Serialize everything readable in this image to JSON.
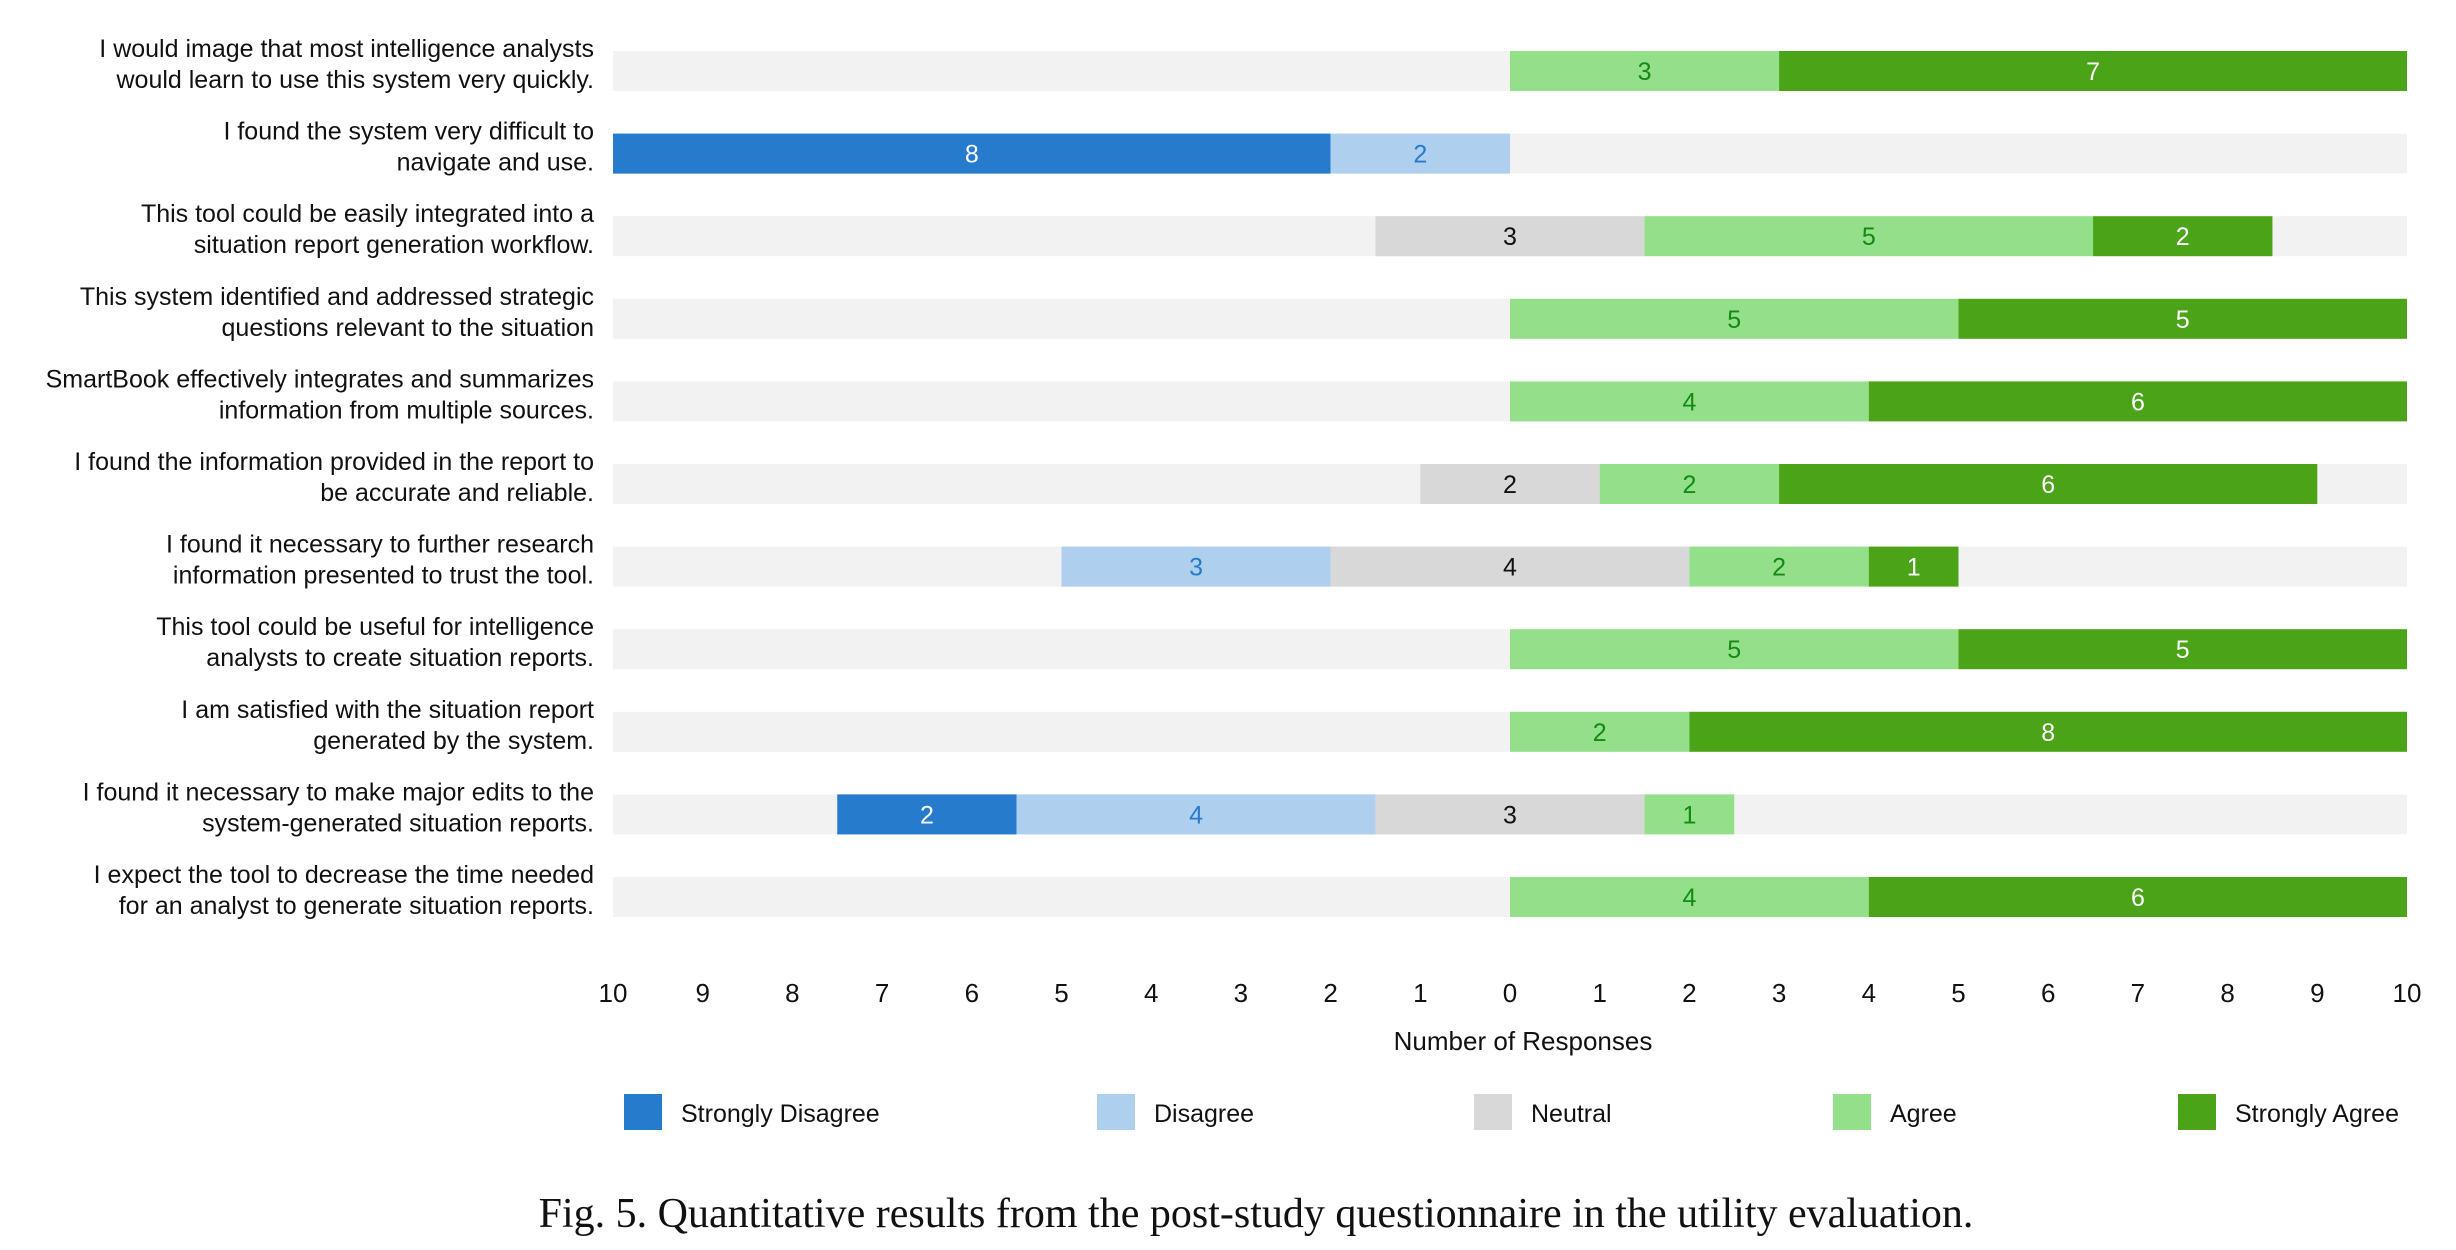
{
  "chart_data": {
    "type": "bar",
    "subtype": "diverging-stacked-horizontal",
    "title": "",
    "xlabel": "Number of Responses",
    "ylabel": "",
    "xlim": [
      -10,
      10
    ],
    "x_ticks": [
      -10,
      -9,
      -8,
      -7,
      -6,
      -5,
      -4,
      -3,
      -2,
      -1,
      0,
      1,
      2,
      3,
      4,
      5,
      6,
      7,
      8,
      9,
      10
    ],
    "x_tick_labels": [
      "10",
      "9",
      "8",
      "7",
      "6",
      "5",
      "4",
      "3",
      "2",
      "1",
      "0",
      "1",
      "2",
      "3",
      "4",
      "5",
      "6",
      "7",
      "8",
      "9",
      "10"
    ],
    "grid": false,
    "neutral_centered": true,
    "legend_position": "bottom",
    "legend": [
      "Strongly Disagree",
      "Disagree",
      "Neutral",
      "Agree",
      "Strongly Agree"
    ],
    "colors": {
      "Strongly Disagree": "#277bcc",
      "Disagree": "#aecfee",
      "Neutral": "#d8d8d8",
      "Agree": "#94e08a",
      "Strongly Agree": "#4ba317",
      "track": "#f2f2f2"
    },
    "label_colors": {
      "Strongly Disagree": "#ffffff",
      "Disagree": "#277bcc",
      "Neutral": "#111111",
      "Agree": "#138a13",
      "Strongly Agree": "#ffffff"
    },
    "categories": [
      [
        "I would image that most intelligence analysts",
        "would learn to use this system very quickly."
      ],
      [
        "I found the system very difficult to",
        "navigate and use."
      ],
      [
        "This tool could be easily integrated into a",
        "situation report generation workflow."
      ],
      [
        "This system identified and addressed strategic",
        "questions relevant to the situation"
      ],
      [
        "SmartBook effectively integrates and summarizes",
        "information from multiple sources."
      ],
      [
        "I found the information provided in the report to",
        "be accurate and reliable."
      ],
      [
        "I found it necessary to further research",
        "information presented to trust the tool."
      ],
      [
        "This tool could be useful for intelligence",
        "analysts to create situation reports."
      ],
      [
        "I am satisfied with the situation report",
        "generated by the system."
      ],
      [
        "I found it necessary to make major edits to the",
        "system-generated situation reports."
      ],
      [
        "I expect the tool to decrease the time needed",
        "for an analyst to generate situation reports."
      ]
    ],
    "series": [
      {
        "name": "Strongly Disagree",
        "values": [
          0,
          8,
          0,
          0,
          0,
          0,
          0,
          0,
          0,
          2,
          0
        ]
      },
      {
        "name": "Disagree",
        "values": [
          0,
          2,
          0,
          0,
          0,
          0,
          3,
          0,
          0,
          4,
          0
        ]
      },
      {
        "name": "Neutral",
        "values": [
          0,
          0,
          3,
          0,
          0,
          2,
          4,
          0,
          0,
          3,
          0
        ]
      },
      {
        "name": "Agree",
        "values": [
          3,
          0,
          5,
          5,
          4,
          2,
          2,
          5,
          2,
          1,
          4
        ]
      },
      {
        "name": "Strongly Agree",
        "values": [
          7,
          0,
          2,
          5,
          6,
          6,
          1,
          5,
          8,
          0,
          6
        ]
      }
    ]
  },
  "caption": "Fig. 5.  Quantitative results from the post-study questionnaire in the utility evaluation."
}
